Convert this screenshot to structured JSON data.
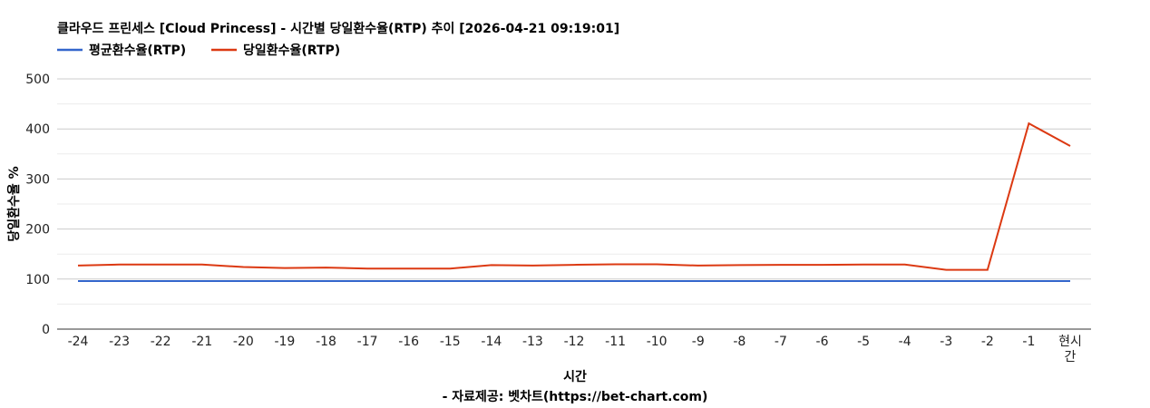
{
  "chart_data": {
    "type": "line",
    "title": "클라우드 프린세스 [Cloud Princess] - 시간별 당일환수율(RTP) 추이 [2026-04-21 09:19:01]",
    "xlabel": "시간",
    "source": "- 자료제공: 벳차트(https://bet-chart.com)",
    "ylabel": "당일환수율 %",
    "ylim": [
      0,
      500
    ],
    "yticks": [
      "0",
      "100",
      "200",
      "300",
      "400",
      "500"
    ],
    "grid": true,
    "legend_position": "top-left",
    "categories": [
      "-24",
      "-23",
      "-22",
      "-21",
      "-20",
      "-19",
      "-18",
      "-17",
      "-16",
      "-15",
      "-14",
      "-13",
      "-12",
      "-11",
      "-10",
      "-9",
      "-8",
      "-7",
      "-6",
      "-5",
      "-4",
      "-3",
      "-2",
      "-1",
      "현시간"
    ],
    "series": [
      {
        "name": "평균환수율(RTP)",
        "color": "#3366cc",
        "values": [
          96,
          96,
          96,
          96,
          96,
          96,
          96,
          96,
          96,
          96,
          96,
          96,
          96,
          96,
          96,
          96,
          96,
          96,
          96,
          96,
          96,
          96,
          96,
          96,
          96
        ]
      },
      {
        "name": "당일환수율(RTP)",
        "color": "#dc3912",
        "values": [
          127,
          129,
          129,
          129,
          124,
          122,
          123,
          121,
          121,
          121,
          128,
          127,
          128.5,
          129.5,
          129.5,
          127,
          128,
          128.5,
          128.5,
          129,
          129,
          118.5,
          118.5,
          411,
          366
        ]
      }
    ]
  }
}
